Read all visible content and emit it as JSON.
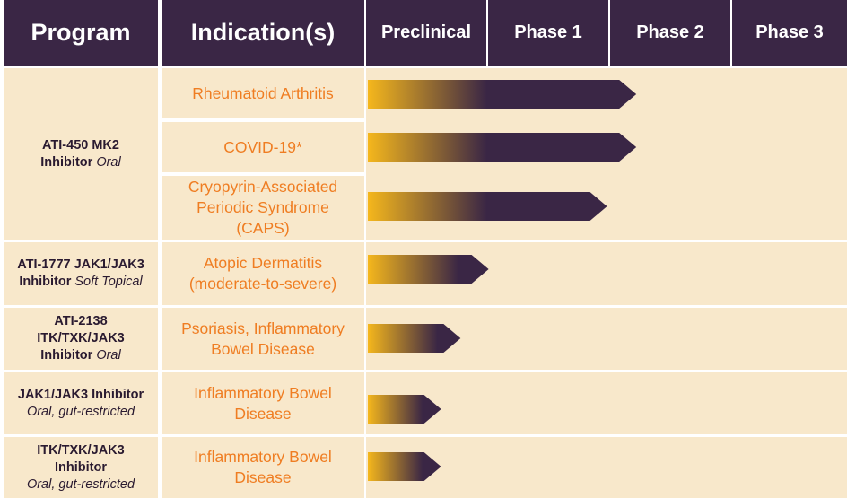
{
  "header": {
    "program": "Program",
    "indication": "Indication(s)",
    "phases": [
      "Preclinical",
      "Phase 1",
      "Phase 2",
      "Phase 3"
    ]
  },
  "programs": [
    {
      "bold": "ATI-450 MK2",
      "bold2": "Inhibitor",
      "italic": "Oral"
    },
    {
      "bold": "ATI-1777 JAK1/JAK3",
      "bold2": "Inhibitor",
      "italic": "Soft Topical"
    },
    {
      "bold": "ATI-2138",
      "bold_line2": "ITK/TXK/JAK3",
      "bold2": "Inhibitor",
      "italic": "Oral"
    },
    {
      "bold": "JAK1/JAK3 Inhibitor",
      "italic": "Oral, gut-restricted"
    },
    {
      "bold": "ITK/TXK/JAK3",
      "bold2": "Inhibitor",
      "italic": "Oral, gut-restricted"
    }
  ],
  "indications": [
    "Rheumatoid Arthritis",
    "COVID-19*",
    "Cryopyrin-Associated\nPeriodic Syndrome\n(CAPS)",
    "Atopic Dermatitis\n(moderate-to-severe)",
    "Psoriasis, Inflammatory\nBowel Disease",
    "Inflammatory Bowel\nDisease",
    "Inflammatory Bowel\nDisease"
  ],
  "colors": {
    "header_bg": "#3a2645",
    "cell_bg": "#f8e8cb",
    "indication_text": "#ef7d22",
    "bar_start": "#f5b71c",
    "bar_end": "#3a2645"
  },
  "chart_data": {
    "type": "bar",
    "orientation": "horizontal",
    "x_stages": [
      "Preclinical",
      "Phase 1",
      "Phase 2",
      "Phase 3"
    ],
    "note": "progress measured in phase columns (0 = start of Preclinical, 4 = end of Phase 3)",
    "categories": [
      "Rheumatoid Arthritis",
      "COVID-19*",
      "Cryopyrin-Associated Periodic Syndrome (CAPS)",
      "Atopic Dermatitis (moderate-to-severe)",
      "Psoriasis, Inflammatory Bowel Disease",
      "Inflammatory Bowel Disease",
      "Inflammatory Bowel Disease"
    ],
    "values": [
      2.2,
      2.2,
      1.96,
      0.99,
      0.76,
      0.6,
      0.6
    ]
  }
}
